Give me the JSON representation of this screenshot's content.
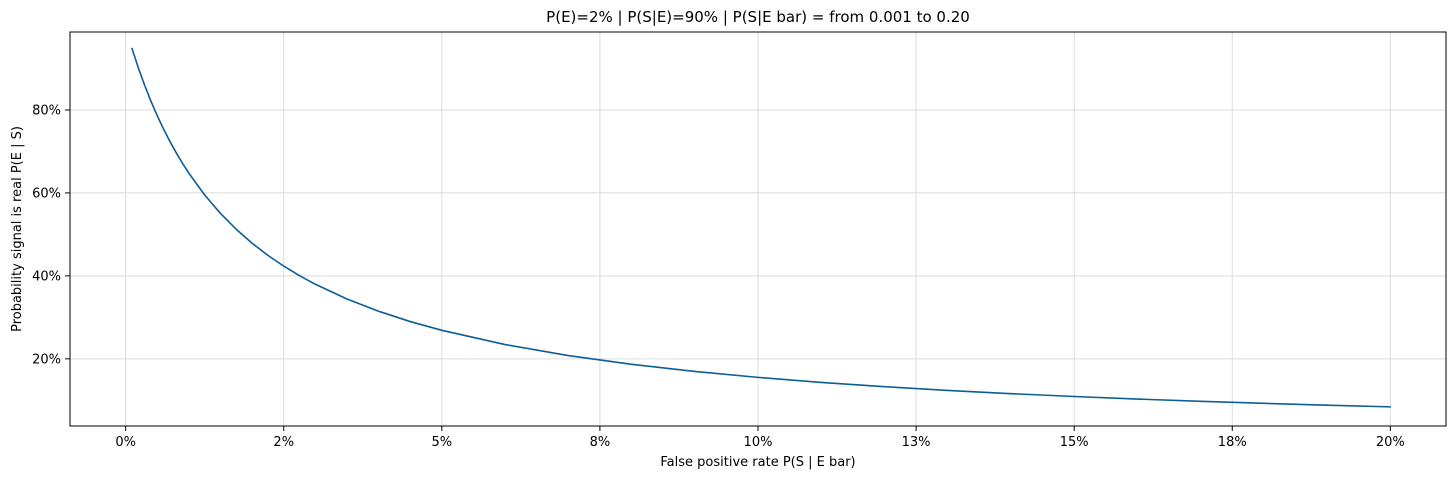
{
  "chart_data": {
    "type": "line",
    "title": "P(E)=2% | P(S|E)=90% | P(S|E bar) = from 0.001 to 0.20",
    "xlabel": "False positive rate  P(S | E bar)",
    "ylabel": "Probability signal is real  P(E | S)",
    "xlim": [
      -0.0088,
      0.2088
    ],
    "ylim": [
      0.038,
      0.988
    ],
    "grid": true,
    "x_ticks": [
      0,
      0.025,
      0.05,
      0.075,
      0.1,
      0.125,
      0.15,
      0.175,
      0.2
    ],
    "x_tick_labels": [
      "0%",
      "2%",
      "5%",
      "8%",
      "10%",
      "13%",
      "15%",
      "18%",
      "20%"
    ],
    "y_ticks": [
      0.2,
      0.4,
      0.6,
      0.8
    ],
    "y_tick_labels": [
      "20%",
      "40%",
      "60%",
      "80%"
    ],
    "parameters": {
      "prior": 0.02,
      "sensitivity": 0.9
    },
    "series": [
      {
        "name": "P(E | S)",
        "color": "#0b5f97",
        "x": [
          0.001,
          0.002,
          0.003,
          0.004,
          0.005,
          0.006,
          0.007,
          0.008,
          0.009,
          0.01,
          0.0125,
          0.015,
          0.0175,
          0.02,
          0.0225,
          0.025,
          0.0275,
          0.03,
          0.035,
          0.04,
          0.045,
          0.05,
          0.06,
          0.07,
          0.08,
          0.09,
          0.1,
          0.11,
          0.12,
          0.13,
          0.14,
          0.15,
          0.16,
          0.17,
          0.18,
          0.19,
          0.2
        ],
        "y": [
          0.9484,
          0.9018,
          0.8596,
          0.8212,
          0.786,
          0.7538,
          0.7241,
          0.6967,
          0.6712,
          0.6475,
          0.595,
          0.5505,
          0.5121,
          0.4787,
          0.4494,
          0.4235,
          0.4004,
          0.3797,
          0.3442,
          0.3147,
          0.2898,
          0.2687,
          0.2344,
          0.2079,
          0.1867,
          0.1695,
          0.1552,
          0.1431,
          0.1328,
          0.1238,
          0.116,
          0.1091,
          0.103,
          0.0975,
          0.0926,
          0.0882,
          0.0841
        ]
      }
    ]
  }
}
